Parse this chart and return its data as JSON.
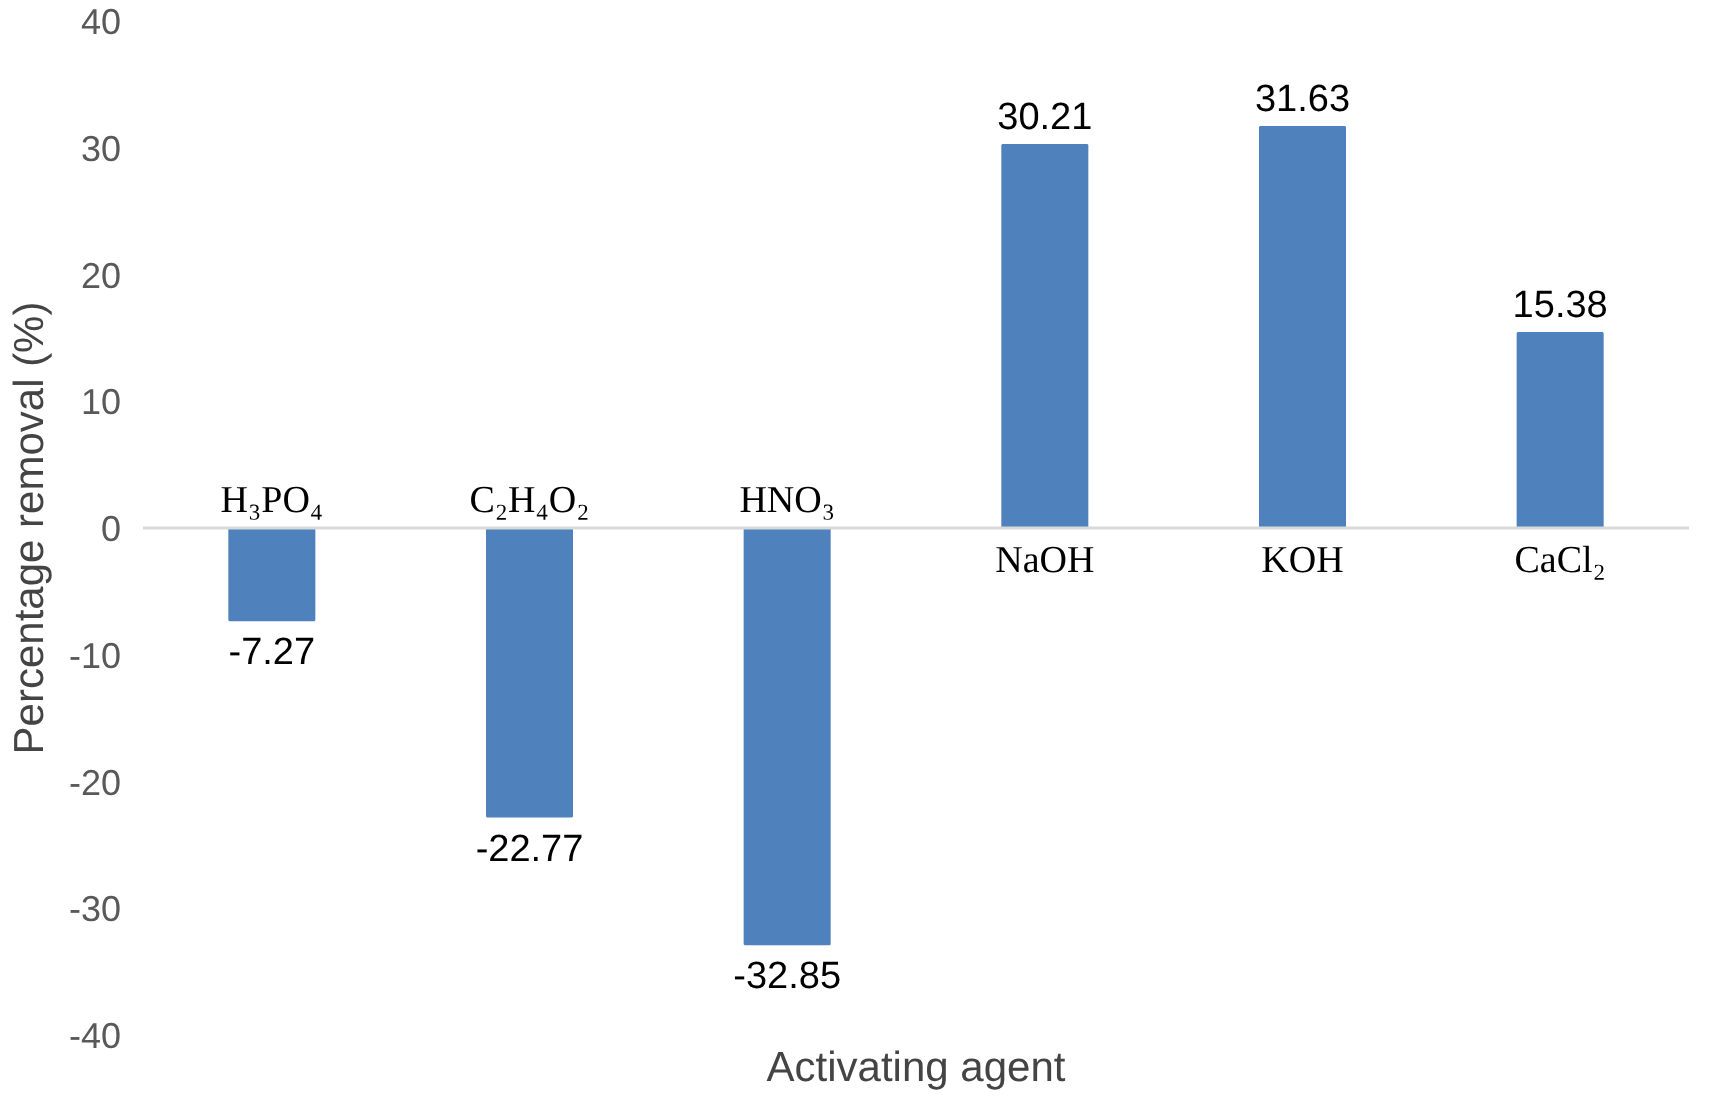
{
  "chart_data": {
    "type": "bar",
    "xlabel": "Activating agent",
    "ylabel": "Percentage removal (%)",
    "categories": [
      "H₃PO₄",
      "C₂H₄O₂",
      "HNO₃",
      "NaOH",
      "KOH",
      "CaCl₂"
    ],
    "values": [
      -7.27,
      -22.77,
      -32.85,
      30.21,
      31.63,
      15.38
    ],
    "color": "#4f81bd",
    "ylim": [
      -40,
      40
    ],
    "yticks": [
      -40,
      -30,
      -20,
      -10,
      0,
      10,
      20,
      30,
      40
    ],
    "data_labels": true,
    "grid": false
  }
}
